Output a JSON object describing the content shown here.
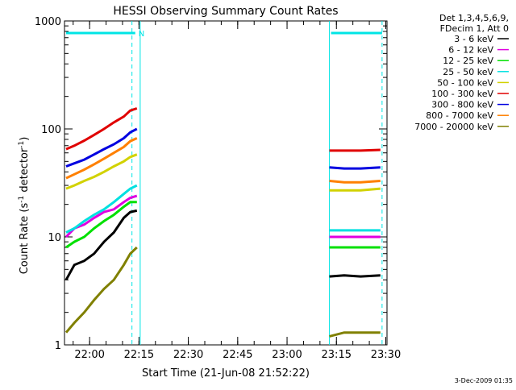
{
  "chart_data": {
    "type": "line",
    "title": "HESSI Observing Summary Count Rates",
    "xlabel": "Start Time (21-Jun-08 21:52:22)",
    "ylabel_main": "Count Rate (s",
    "ylabel_sup1": "-1",
    "ylabel_mid": " detector",
    "ylabel_sup2": "-1",
    "ylabel_end": ")",
    "y_scale": "log",
    "ylim": [
      1,
      1000
    ],
    "xlim_minutes_after_2152_22": [
      0,
      98
    ],
    "x_tick_labels": [
      "22:00",
      "22:15",
      "22:30",
      "22:45",
      "23:00",
      "23:15",
      "23:30"
    ],
    "x_tick_minutes": [
      7.63,
      22.63,
      37.63,
      52.63,
      67.63,
      82.63,
      97.63
    ],
    "y_tick_labels": [
      "1",
      "10",
      "100",
      "1000"
    ],
    "y_tick_values": [
      1,
      10,
      100,
      1000
    ],
    "legend_header": [
      "Det 1,3,4,5,6,9,",
      "FDecim 1, Att 0"
    ],
    "legend_position": "right, outside plot",
    "timestamp": "3-Dec-2009 01:35",
    "flag_label": "N",
    "flag_color": "#00e5e5",
    "night_markers_dashed_minutes": [
      20.5,
      96.5
    ],
    "night_markers_solid_minutes": [
      23.0,
      80.5
    ],
    "flag_intervals_minutes": [
      [
        0.5,
        21.5
      ],
      [
        81.0,
        96.5
      ]
    ],
    "data_gap_minutes": [
      23,
      80
    ],
    "series": [
      {
        "name": "3 - 6 keV",
        "color": "#000000",
        "segments": [
          [
            [
              0.5,
              4
            ],
            [
              3,
              5.5
            ],
            [
              6,
              6
            ],
            [
              9,
              7
            ],
            [
              12,
              9
            ],
            [
              15,
              11
            ],
            [
              18,
              15
            ],
            [
              20,
              17
            ],
            [
              22,
              17.5
            ]
          ],
          [
            [
              80.5,
              4.3
            ],
            [
              85,
              4.4
            ],
            [
              90,
              4.3
            ],
            [
              96,
              4.4
            ]
          ]
        ]
      },
      {
        "name": "6 - 12 keV",
        "color": "#e000e0",
        "segments": [
          [
            [
              0.5,
              10
            ],
            [
              3,
              12
            ],
            [
              6,
              13
            ],
            [
              9,
              15
            ],
            [
              12,
              17
            ],
            [
              15,
              18
            ],
            [
              18,
              21
            ],
            [
              20,
              23
            ],
            [
              22,
              24
            ]
          ],
          [
            [
              80.5,
              10
            ],
            [
              85,
              10
            ],
            [
              90,
              10
            ],
            [
              96,
              10
            ]
          ]
        ]
      },
      {
        "name": "12 - 25 keV",
        "color": "#00e000",
        "segments": [
          [
            [
              0.5,
              8
            ],
            [
              3,
              9
            ],
            [
              6,
              10
            ],
            [
              9,
              12
            ],
            [
              12,
              14
            ],
            [
              15,
              16
            ],
            [
              18,
              19
            ],
            [
              20,
              21
            ],
            [
              22,
              21
            ]
          ],
          [
            [
              80.5,
              8
            ],
            [
              85,
              8
            ],
            [
              90,
              8
            ],
            [
              96,
              8
            ]
          ]
        ]
      },
      {
        "name": "25 - 50 keV",
        "color": "#00e0e0",
        "segments": [
          [
            [
              0.5,
              11
            ],
            [
              3,
              12
            ],
            [
              6,
              14
            ],
            [
              9,
              16
            ],
            [
              12,
              18
            ],
            [
              15,
              21
            ],
            [
              18,
              25
            ],
            [
              20,
              28
            ],
            [
              22,
              30
            ]
          ],
          [
            [
              80.5,
              11.5
            ],
            [
              85,
              11.5
            ],
            [
              90,
              11.5
            ],
            [
              96,
              11.5
            ]
          ]
        ]
      },
      {
        "name": "50 - 100 keV",
        "color": "#d2d200",
        "segments": [
          [
            [
              0.5,
              28
            ],
            [
              3,
              30
            ],
            [
              6,
              33
            ],
            [
              9,
              36
            ],
            [
              12,
              40
            ],
            [
              15,
              45
            ],
            [
              18,
              50
            ],
            [
              20,
              55
            ],
            [
              22,
              58
            ]
          ],
          [
            [
              80.5,
              27
            ],
            [
              85,
              27
            ],
            [
              90,
              27
            ],
            [
              96,
              28
            ]
          ]
        ]
      },
      {
        "name": "100 - 300 keV",
        "color": "#e00000",
        "segments": [
          [
            [
              0.5,
              65
            ],
            [
              3,
              70
            ],
            [
              6,
              78
            ],
            [
              9,
              88
            ],
            [
              12,
              100
            ],
            [
              15,
              115
            ],
            [
              18,
              130
            ],
            [
              20,
              148
            ],
            [
              22,
              155
            ]
          ],
          [
            [
              80.5,
              63
            ],
            [
              85,
              63
            ],
            [
              90,
              63
            ],
            [
              96,
              64
            ]
          ]
        ]
      },
      {
        "name": "300 - 800 keV",
        "color": "#0000e0",
        "segments": [
          [
            [
              0.5,
              45
            ],
            [
              3,
              48
            ],
            [
              6,
              52
            ],
            [
              9,
              58
            ],
            [
              12,
              65
            ],
            [
              15,
              72
            ],
            [
              18,
              82
            ],
            [
              20,
              93
            ],
            [
              22,
              100
            ]
          ],
          [
            [
              80.5,
              44
            ],
            [
              85,
              43
            ],
            [
              90,
              43
            ],
            [
              96,
              44
            ]
          ]
        ]
      },
      {
        "name": "800 - 7000 keV",
        "color": "#ff8000",
        "segments": [
          [
            [
              0.5,
              35
            ],
            [
              3,
              38
            ],
            [
              6,
              42
            ],
            [
              9,
              47
            ],
            [
              12,
              53
            ],
            [
              15,
              60
            ],
            [
              18,
              68
            ],
            [
              20,
              77
            ],
            [
              22,
              82
            ]
          ],
          [
            [
              80.5,
              33
            ],
            [
              85,
              32
            ],
            [
              90,
              32
            ],
            [
              96,
              33
            ]
          ]
        ]
      },
      {
        "name": "7000 - 20000 keV",
        "color": "#808000",
        "segments": [
          [
            [
              0.5,
              1.3
            ],
            [
              3,
              1.6
            ],
            [
              6,
              2
            ],
            [
              9,
              2.6
            ],
            [
              12,
              3.3
            ],
            [
              15,
              4
            ],
            [
              18,
              5.5
            ],
            [
              20,
              7
            ],
            [
              22,
              8
            ]
          ],
          [
            [
              80.5,
              1.2
            ],
            [
              85,
              1.3
            ],
            [
              90,
              1.3
            ],
            [
              96,
              1.3
            ]
          ]
        ]
      }
    ]
  }
}
